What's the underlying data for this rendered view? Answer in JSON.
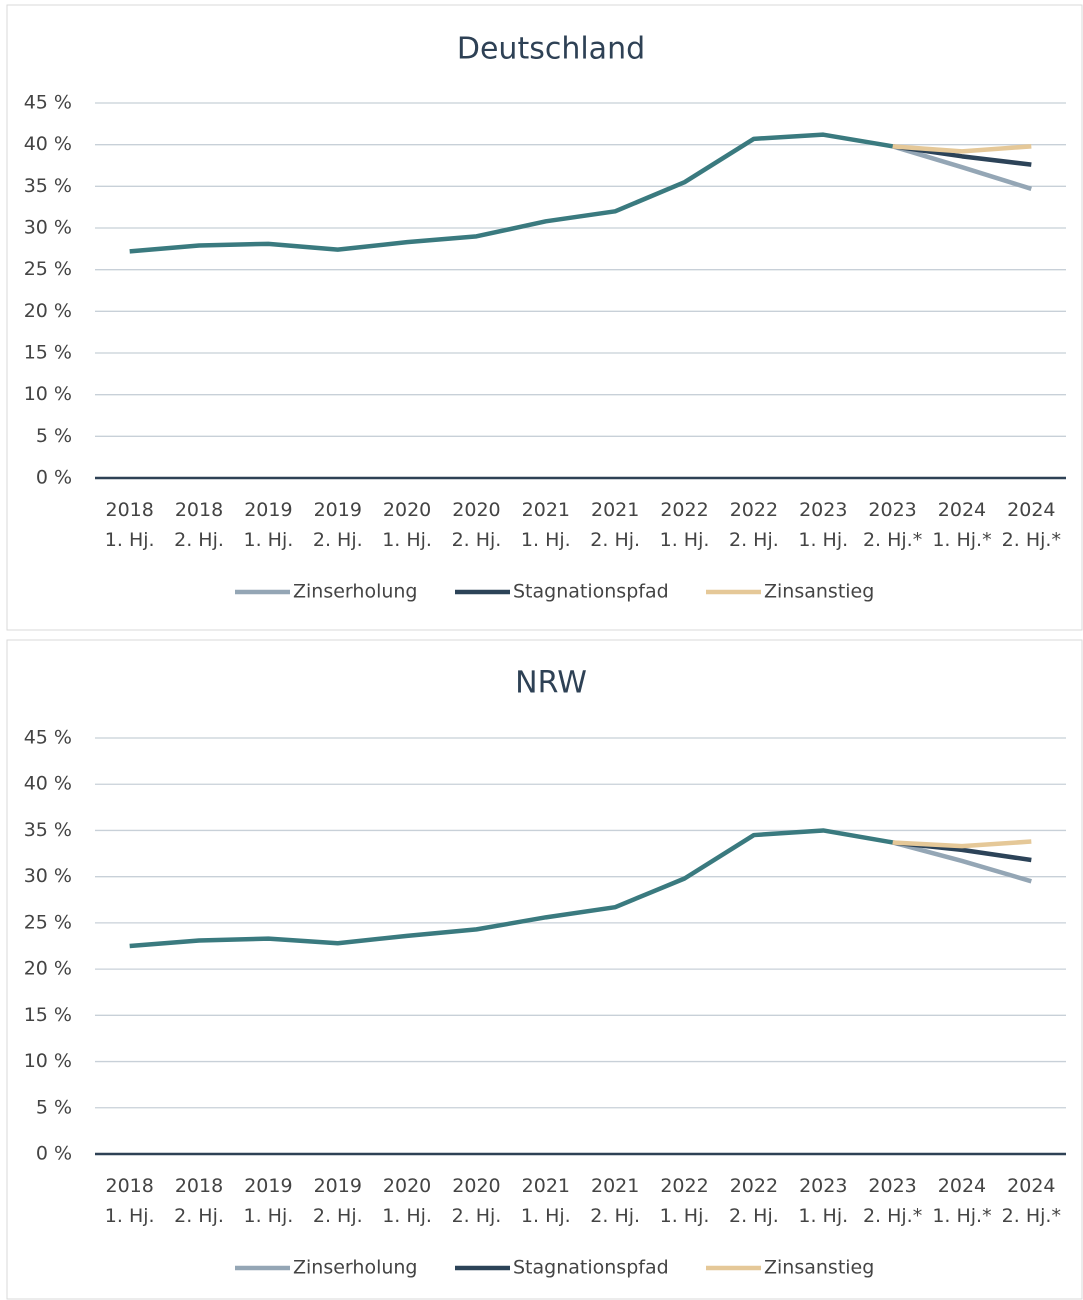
{
  "chart_data": [
    {
      "type": "line",
      "title": "Deutschland",
      "categories": [
        "2018 1. Hj.",
        "2018 2. Hj.",
        "2019 1. Hj.",
        "2019 2. Hj.",
        "2020 1. Hj.",
        "2020 2. Hj.",
        "2021 1. Hj.",
        "2021 2. Hj.",
        "2022 1. Hj.",
        "2022 2. Hj.",
        "2023 1. Hj.",
        "2023 2. Hj.*",
        "2024 1. Hj.*",
        "2024 2. Hj.*"
      ],
      "ylim": [
        0,
        45
      ],
      "yticks": [
        {
          "value": 0,
          "label": "0 %"
        },
        {
          "value": 5,
          "label": "5 %"
        },
        {
          "value": 10,
          "label": "10 %"
        },
        {
          "value": 15,
          "label": "15 %"
        },
        {
          "value": 20,
          "label": "20 %"
        },
        {
          "value": 25,
          "label": "25 %"
        },
        {
          "value": 30,
          "label": "30 %"
        },
        {
          "value": 35,
          "label": "35 %"
        },
        {
          "value": 40,
          "label": "40 %"
        },
        {
          "value": 45,
          "label": "45 %"
        }
      ],
      "grid": true,
      "legend": "bottom",
      "series": [
        {
          "name": "Zinserholung",
          "color": "#94a6b5",
          "values": [
            null,
            null,
            null,
            null,
            null,
            null,
            null,
            null,
            null,
            null,
            null,
            39.8,
            37.3,
            34.7
          ]
        },
        {
          "name": "Stagnationspfad",
          "color": "#2c4358",
          "values": [
            null,
            null,
            null,
            null,
            null,
            null,
            null,
            null,
            null,
            null,
            null,
            39.8,
            38.6,
            37.6
          ]
        },
        {
          "name": "Zinsanstieg",
          "color": "#e5c898",
          "values": [
            null,
            null,
            null,
            null,
            null,
            null,
            null,
            null,
            null,
            null,
            null,
            39.8,
            39.2,
            39.8
          ]
        },
        {
          "color": "#3a7a7f",
          "values": [
            27.2,
            27.9,
            28.1,
            27.4,
            28.3,
            29.0,
            30.8,
            32.0,
            35.5,
            40.7,
            41.2,
            39.8,
            null,
            null
          ]
        }
      ]
    },
    {
      "type": "line",
      "title": "NRW",
      "categories": [
        "2018 1. Hj.",
        "2018 2. Hj.",
        "2019 1. Hj.",
        "2019 2. Hj.",
        "2020 1. Hj.",
        "2020 2. Hj.",
        "2021 1. Hj.",
        "2021 2. Hj.",
        "2022 1. Hj.",
        "2022 2. Hj.",
        "2023 1. Hj.",
        "2023 2. Hj.*",
        "2024 1. Hj.*",
        "2024 2. Hj.*"
      ],
      "ylim": [
        0,
        45
      ],
      "yticks": [
        {
          "value": 0,
          "label": "0 %"
        },
        {
          "value": 5,
          "label": "5 %"
        },
        {
          "value": 10,
          "label": "10 %"
        },
        {
          "value": 15,
          "label": "15 %"
        },
        {
          "value": 20,
          "label": "20 %"
        },
        {
          "value": 25,
          "label": "25 %"
        },
        {
          "value": 30,
          "label": "30 %"
        },
        {
          "value": 35,
          "label": "35 %"
        },
        {
          "value": 40,
          "label": "40 %"
        },
        {
          "value": 45,
          "label": "45 %"
        }
      ],
      "grid": true,
      "legend": "bottom",
      "series": [
        {
          "name": "Zinserholung",
          "color": "#94a6b5",
          "values": [
            null,
            null,
            null,
            null,
            null,
            null,
            null,
            null,
            null,
            null,
            null,
            33.7,
            31.7,
            29.5
          ]
        },
        {
          "name": "Stagnationspfad",
          "color": "#2c4358",
          "values": [
            null,
            null,
            null,
            null,
            null,
            null,
            null,
            null,
            null,
            null,
            null,
            33.7,
            32.9,
            31.8
          ]
        },
        {
          "name": "Zinsanstieg",
          "color": "#e5c898",
          "values": [
            null,
            null,
            null,
            null,
            null,
            null,
            null,
            null,
            null,
            null,
            null,
            33.7,
            33.3,
            33.8
          ]
        },
        {
          "color": "#3a7a7f",
          "values": [
            22.5,
            23.1,
            23.3,
            22.8,
            23.6,
            24.3,
            25.6,
            26.7,
            29.8,
            34.5,
            35.0,
            33.7,
            null,
            null
          ]
        }
      ]
    }
  ]
}
